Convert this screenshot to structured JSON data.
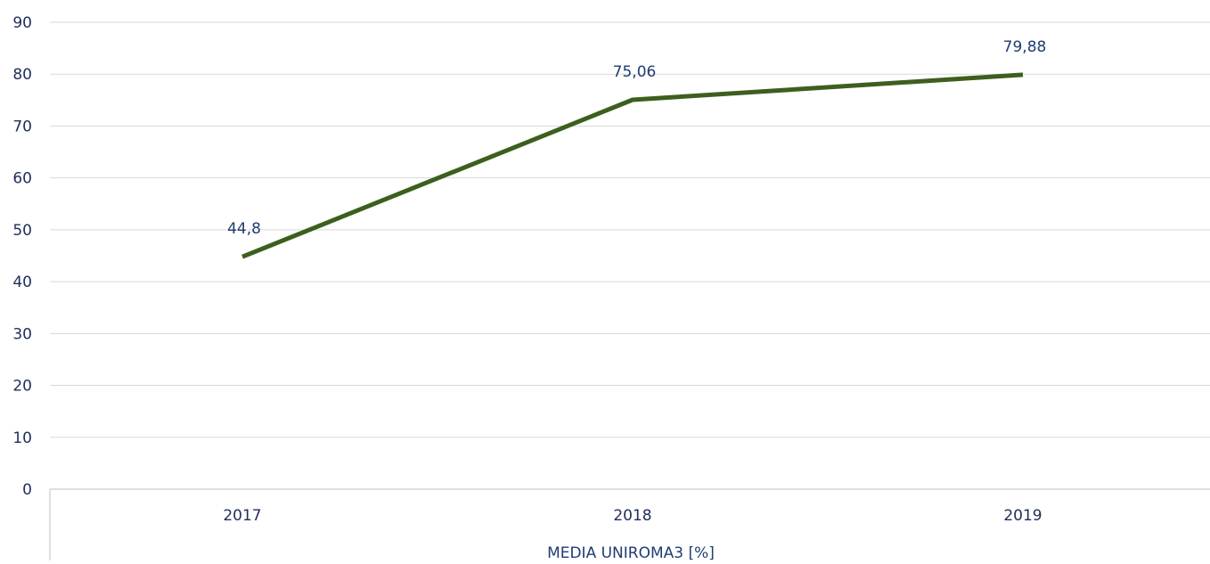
{
  "chart_data": {
    "type": "line",
    "categories": [
      "2017",
      "2018",
      "2019"
    ],
    "series": [
      {
        "values": [
          44.8,
          75.06,
          79.88
        ],
        "data_labels": [
          "44,8",
          "75,06",
          "79,88"
        ],
        "color": "#3d5f1e"
      }
    ],
    "xlabel": "MEDIA UNIROMA3 [%]",
    "ylabel": "",
    "ylim": [
      0,
      90
    ],
    "yticks": [
      0,
      10,
      20,
      30,
      40,
      50,
      60,
      70,
      80,
      90
    ],
    "grid": true,
    "legend": "none",
    "colors": {
      "line": "#3d5f1e",
      "text": "#1f2d5a",
      "grid": "#d9d9d9",
      "axis": "#bfbfbf"
    }
  }
}
